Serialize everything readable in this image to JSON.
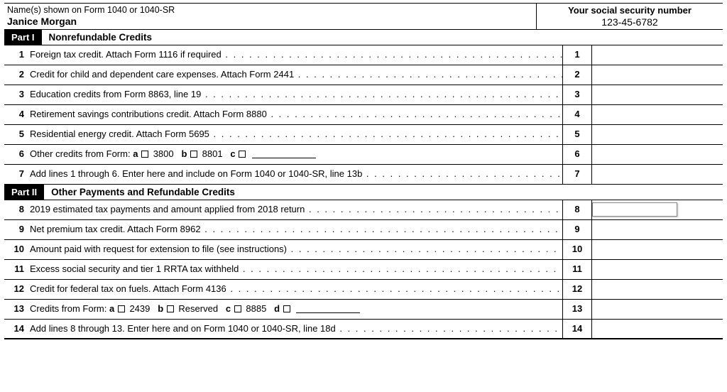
{
  "header": {
    "name_label": "Name(s) shown on Form 1040 or 1040-SR",
    "name_value": "Janice Morgan",
    "ssn_label": "Your social security number",
    "ssn_value": "123-45-6782"
  },
  "part1": {
    "tag": "Part I",
    "title": "Nonrefundable Credits"
  },
  "part2": {
    "tag": "Part II",
    "title": "Other Payments and Refundable Credits"
  },
  "lines": {
    "l1": {
      "n": "1",
      "desc": "Foreign tax credit. Attach Form 1116 if required"
    },
    "l2": {
      "n": "2",
      "desc": "Credit for child and dependent care expenses. Attach Form 2441"
    },
    "l3": {
      "n": "3",
      "desc": "Education credits from Form 8863, line 19"
    },
    "l4": {
      "n": "4",
      "desc": "Retirement savings contributions credit. Attach Form 8880"
    },
    "l5": {
      "n": "5",
      "desc": "Residential energy credit. Attach Form 5695"
    },
    "l6": {
      "n": "6",
      "pre": "Other credits from Form:",
      "a": "3800",
      "b": "8801",
      "c": ""
    },
    "l7": {
      "n": "7",
      "desc": "Add lines 1 through 6. Enter here and include on Form 1040 or 1040-SR, line 13b"
    },
    "l8": {
      "n": "8",
      "desc": "2019 estimated tax payments and amount applied from 2018 return"
    },
    "l9": {
      "n": "9",
      "desc": "Net premium tax credit. Attach Form 8962"
    },
    "l10": {
      "n": "10",
      "desc": "Amount paid with request for extension to file (see instructions)"
    },
    "l11": {
      "n": "11",
      "desc": "Excess social security and tier 1 RRTA tax withheld"
    },
    "l12": {
      "n": "12",
      "desc": "Credit for federal tax on fuels. Attach Form 4136"
    },
    "l13": {
      "n": "13",
      "pre": "Credits from Form:",
      "a": "2439",
      "b": "Reserved",
      "c": "8885",
      "d": ""
    },
    "l14": {
      "n": "14",
      "desc": "Add lines 8 through 13. Enter here and on Form 1040 or 1040-SR, line 18d"
    }
  },
  "labels": {
    "a": "a",
    "b": "b",
    "c": "c",
    "d": "d"
  },
  "colors": {
    "text": "#000000",
    "bg": "#ffffff",
    "partbg": "#000000"
  }
}
